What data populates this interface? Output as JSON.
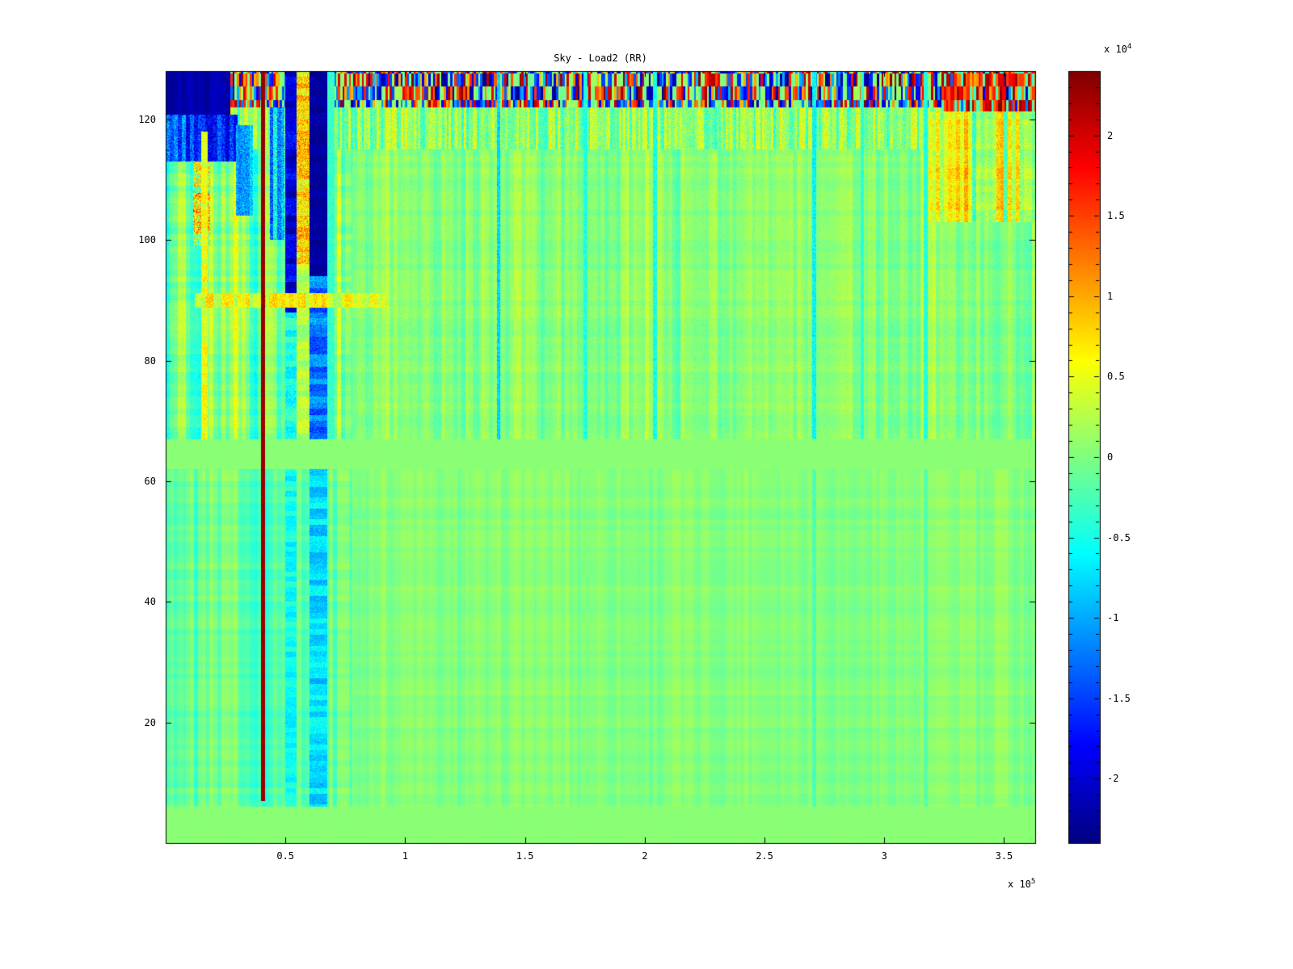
{
  "chart_data": {
    "type": "heatmap",
    "title": "Sky - Load2 (RR)",
    "colormap": "jet",
    "value_units": "1e4",
    "x_axis": {
      "range": [
        0,
        3.63
      ],
      "exp_prefix": "x 10",
      "exp_power": "5",
      "ticks": [
        {
          "label": "0.5",
          "value": 0.5
        },
        {
          "label": "1",
          "value": 1
        },
        {
          "label": "1.5",
          "value": 1.5
        },
        {
          "label": "2",
          "value": 2
        },
        {
          "label": "2.5",
          "value": 2.5
        },
        {
          "label": "3",
          "value": 3
        },
        {
          "label": "3.5",
          "value": 3.5
        }
      ]
    },
    "y_axis": {
      "range": [
        0,
        128
      ],
      "ticks": [
        {
          "label": "20",
          "value": 20
        },
        {
          "label": "40",
          "value": 40
        },
        {
          "label": "60",
          "value": 60
        },
        {
          "label": "80",
          "value": 80
        },
        {
          "label": "100",
          "value": 100
        },
        {
          "label": "120",
          "value": 120
        }
      ]
    },
    "colorbar": {
      "range": [
        -2.4,
        2.4
      ],
      "exp_prefix": "x 10",
      "exp_power": "4",
      "minor_tick_step": 0.1,
      "ticks": [
        {
          "label": "2",
          "value": 2
        },
        {
          "label": "1.5",
          "value": 1.5
        },
        {
          "label": "1",
          "value": 1
        },
        {
          "label": "0.5",
          "value": 0.5
        },
        {
          "label": "0",
          "value": 0
        },
        {
          "label": "-0.5",
          "value": -0.5
        },
        {
          "label": "-1",
          "value": -1
        },
        {
          "label": "-1.5",
          "value": -1.5
        },
        {
          "label": "-2",
          "value": -2
        }
      ]
    },
    "model": {
      "layers": [
        {
          "kind": "region",
          "x": [
            0,
            3.63
          ],
          "y": [
            0,
            128
          ],
          "value": 0.05,
          "noise": 0.02,
          "seed": 1
        },
        {
          "kind": "region",
          "x": [
            0,
            3.63
          ],
          "y": [
            6,
            62
          ],
          "value": 0.03,
          "stripe": [
            0.09,
            60,
            1
          ],
          "stripe2": [
            0.05,
            13,
            2
          ],
          "hband": [
            0.05,
            1.1,
            3
          ],
          "noise": 0.03,
          "seed": 2
        },
        {
          "kind": "region",
          "x": [
            0,
            0.78
          ],
          "y": [
            6,
            62
          ],
          "value": -0.1,
          "stripe": [
            0.22,
            60,
            4
          ],
          "stripe2": [
            0.1,
            13,
            5
          ],
          "hband": [
            0.1,
            1.1,
            6
          ],
          "noise": 0.04,
          "seed": 3
        },
        {
          "kind": "region",
          "x": [
            0,
            3.63
          ],
          "y": [
            67,
            122
          ],
          "value": 0.04,
          "stripe": [
            0.2,
            60,
            7
          ],
          "stripe2": [
            0.1,
            13,
            8
          ],
          "hband": [
            0.06,
            1.0,
            9
          ],
          "noise": 0.13,
          "seed": 4
        },
        {
          "kind": "region",
          "x": [
            0,
            0.78
          ],
          "y": [
            67,
            122
          ],
          "value": -0.02,
          "stripe": [
            0.42,
            60,
            10
          ],
          "stripe2": [
            0.18,
            13,
            11
          ],
          "hband": [
            0.14,
            1.0,
            12
          ],
          "noise": 0.16,
          "seed": 5
        },
        {
          "kind": "region",
          "x": [
            0,
            3.63
          ],
          "y": [
            115,
            122
          ],
          "value": 0.08,
          "stripe": [
            0.45,
            110,
            13
          ],
          "noise": 0.35,
          "seed": 6
        },
        {
          "kind": "speckle",
          "x": [
            0,
            3.63
          ],
          "y": [
            122,
            128
          ],
          "cellw": 0.009,
          "rowh": 2.2,
          "neg_p": 0.4,
          "pos_p": 0.34,
          "base": 0.9,
          "spread": 1.5,
          "mid": 0.6,
          "seed": 7
        },
        {
          "kind": "speckle",
          "x": [
            3.24,
            3.63
          ],
          "y": [
            121.3,
            128
          ],
          "cellw": 0.009,
          "rowh": 2.2,
          "neg_p": 0.1,
          "pos_p": 0.66,
          "base": 1.0,
          "spread": 1.4,
          "mid": 0.5,
          "seed": 8
        },
        {
          "kind": "region",
          "x": [
            3.17,
            3.63
          ],
          "y": [
            103,
            121.3
          ],
          "value": 0.38,
          "stripe": [
            0.75,
            60,
            16
          ],
          "hband": [
            0.15,
            1,
            17
          ],
          "noise": 0.3,
          "seed": 9
        },
        {
          "kind": "region",
          "x": [
            0,
            0.3
          ],
          "y": [
            113,
            120.8
          ],
          "value": -1.5,
          "stripe": [
            0.5,
            60,
            18
          ],
          "noise": 0.45,
          "seed": 10
        },
        {
          "kind": "region",
          "x": [
            0,
            0.27
          ],
          "y": [
            120.8,
            128
          ],
          "value": -2.2,
          "stripe": [
            0.12,
            60,
            19
          ],
          "noise": 0.12,
          "seed": 11
        },
        {
          "kind": "region",
          "x": [
            0.115,
            0.185
          ],
          "y": [
            99,
            113
          ],
          "value": 0.45,
          "hband": [
            0.55,
            0.9,
            20
          ],
          "noise": 0.8,
          "seed": 12
        },
        {
          "kind": "region",
          "x": [
            0.295,
            0.365
          ],
          "y": [
            104,
            119
          ],
          "value": -1.05,
          "stripe": [
            0.3,
            60,
            21
          ],
          "noise": 0.4,
          "seed": 13
        },
        {
          "kind": "region",
          "x": [
            0.15,
            0.175
          ],
          "y": [
            67,
            118
          ],
          "value": 0.5,
          "hband": [
            0.2,
            1,
            22
          ],
          "noise": 0.25,
          "seed": 14
        },
        {
          "kind": "region",
          "x": [
            0.435,
            0.495
          ],
          "y": [
            100,
            122
          ],
          "value": -0.9,
          "stripe": [
            0.5,
            60,
            23
          ],
          "noise": 0.5,
          "seed": 15
        },
        {
          "kind": "region",
          "x": [
            0.5,
            0.545
          ],
          "y": [
            6,
            62
          ],
          "value": -0.55,
          "hband": [
            0.2,
            1.2,
            24
          ],
          "noise": 0.15,
          "seed": 16
        },
        {
          "kind": "region",
          "x": [
            0.5,
            0.545
          ],
          "y": [
            67,
            88
          ],
          "value": -0.5,
          "hband": [
            0.25,
            1,
            25
          ],
          "noise": 0.25,
          "seed": 17
        },
        {
          "kind": "region",
          "x": [
            0.5,
            0.545
          ],
          "y": [
            88,
            128
          ],
          "value": -1.95,
          "hband": [
            0.3,
            1,
            26
          ],
          "noise": 0.3,
          "seed": 18
        },
        {
          "kind": "region",
          "x": [
            0.545,
            0.6
          ],
          "y": [
            67,
            96
          ],
          "value": 0.25,
          "hband": [
            0.2,
            1,
            27
          ],
          "noise": 0.3,
          "seed": 19
        },
        {
          "kind": "region",
          "x": [
            0.545,
            0.6
          ],
          "y": [
            96,
            128
          ],
          "value": 0.75,
          "hband": [
            0.3,
            1,
            28
          ],
          "noise": 0.55,
          "seed": 20
        },
        {
          "kind": "region",
          "x": [
            0.6,
            0.675
          ],
          "y": [
            6,
            62
          ],
          "value": -0.75,
          "hband": [
            0.25,
            1.1,
            29
          ],
          "noise": 0.2,
          "seed": 21
        },
        {
          "kind": "region",
          "x": [
            0.6,
            0.675
          ],
          "y": [
            67,
            94
          ],
          "value": -1.25,
          "hband": [
            0.3,
            1,
            30
          ],
          "noise": 0.3,
          "seed": 22
        },
        {
          "kind": "region",
          "x": [
            0.6,
            0.675
          ],
          "y": [
            94,
            128
          ],
          "value": -2.25,
          "hband": [
            0.1,
            1,
            31
          ],
          "noise": 0.15,
          "seed": 23
        },
        {
          "kind": "region",
          "x": [
            0.675,
            0.705
          ],
          "y": [
            67,
            128
          ],
          "value": -0.35,
          "noise": 0.25,
          "seed": 24
        },
        {
          "kind": "region",
          "x": [
            0.12,
            0.92
          ],
          "y": [
            88.8,
            91.2
          ],
          "value": 0.5,
          "stripe": [
            0.35,
            60,
            32
          ],
          "noise": 0.3,
          "seed": 25
        },
        {
          "kind": "region",
          "x": [
            1.383,
            1.397
          ],
          "y": [
            67,
            128
          ],
          "value": -0.8,
          "noise": 0.3,
          "seed": 26
        },
        {
          "kind": "region",
          "x": [
            1.745,
            1.76
          ],
          "y": [
            67,
            128
          ],
          "value": -0.45,
          "noise": 0.25,
          "seed": 27
        },
        {
          "kind": "region",
          "x": [
            2.035,
            2.05
          ],
          "y": [
            67,
            128
          ],
          "value": -0.5,
          "noise": 0.25,
          "seed": 28
        },
        {
          "kind": "region",
          "x": [
            2.7,
            2.716
          ],
          "y": [
            67,
            128
          ],
          "value": -0.6,
          "noise": 0.25,
          "seed": 29
        },
        {
          "kind": "region",
          "x": [
            2.7,
            2.716
          ],
          "y": [
            6,
            62
          ],
          "value": -0.25,
          "noise": 0.15,
          "seed": 30
        },
        {
          "kind": "region",
          "x": [
            2.9,
            2.914
          ],
          "y": [
            67,
            128
          ],
          "value": -0.4,
          "noise": 0.2,
          "seed": 31
        },
        {
          "kind": "region",
          "x": [
            3.165,
            3.18
          ],
          "y": [
            67,
            128
          ],
          "value": -0.45,
          "noise": 0.2,
          "seed": 32
        },
        {
          "kind": "region",
          "x": [
            3.165,
            3.18
          ],
          "y": [
            6,
            62
          ],
          "value": -0.2,
          "noise": 0.12,
          "seed": 33
        },
        {
          "kind": "region",
          "x": [
            0.398,
            0.4135
          ],
          "y": [
            7,
            128
          ],
          "value": 2.3,
          "noise": 0.12,
          "seed": 34
        }
      ]
    }
  }
}
